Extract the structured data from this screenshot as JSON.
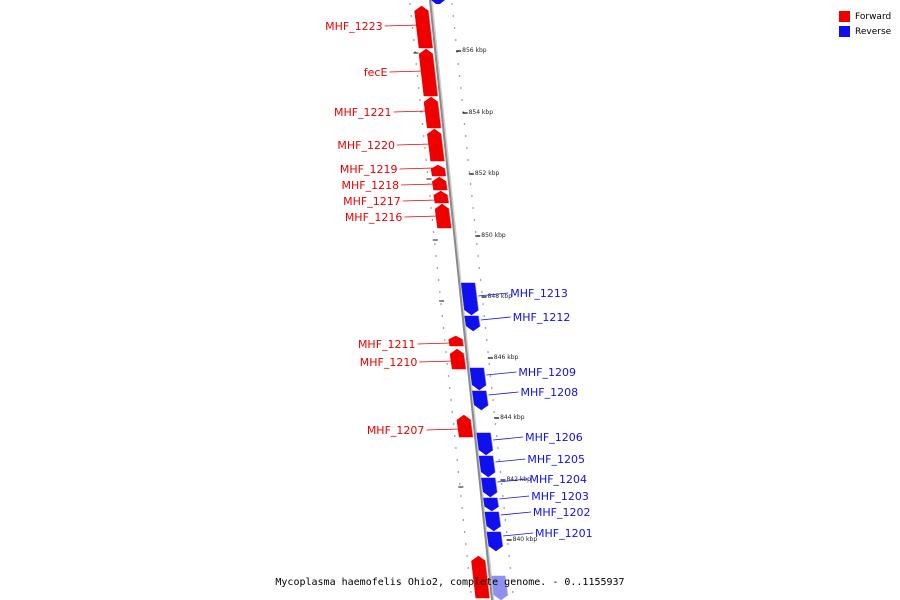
{
  "colors": {
    "forward": "#ee0000",
    "reverse": "#1010ee",
    "backbone": "#999999"
  },
  "legend": {
    "forward": "Forward",
    "reverse": "Reverse"
  },
  "footer": "Mycoplasma haemofelis Ohio2, complete genome. - 0..1155937",
  "kbp_ticks": [
    "856 kbp",
    "854 kbp",
    "852 kbp",
    "850 kbp",
    "848 kbp",
    "846 kbp",
    "844 kbp",
    "842 kbp",
    "840 kbp"
  ],
  "genes_forward": [
    "MHF_1223",
    "fecE",
    "MHF_1221",
    "MHF_1220",
    "MHF_1219",
    "MHF_1218",
    "MHF_1217",
    "MHF_1216",
    "MHF_1211",
    "MHF_1210",
    "MHF_1207"
  ],
  "genes_reverse": [
    "MHF_1213",
    "MHF_1212",
    "MHF_1209",
    "MHF_1208",
    "MHF_1206",
    "MHF_1205",
    "MHF_1204",
    "MHF_1203",
    "MHF_1202",
    "MHF_1201"
  ]
}
